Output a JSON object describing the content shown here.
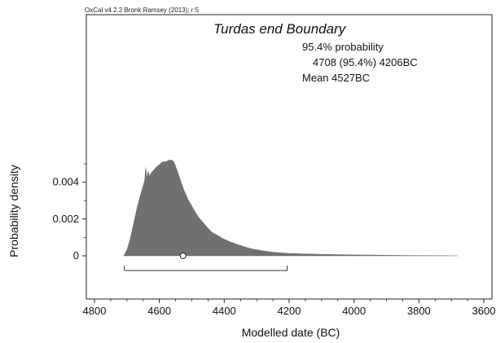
{
  "chart_data": {
    "type": "area",
    "credit": "OxCal v4.2.2 Bronk Ramsey (2013); r:5",
    "title": "Turdas end Boundary",
    "annotations": [
      "95.4% probability",
      "4708 (95.4%) 4206BC",
      "Mean 4527BC"
    ],
    "xlabel": "Modelled date (BC)",
    "ylabel": "Probability density",
    "xlim": [
      4800,
      3600
    ],
    "xticks": [
      4800,
      4600,
      4400,
      4200,
      4000,
      3800,
      3600
    ],
    "ylim": [
      0,
      0.006
    ],
    "yticks": [
      0,
      0.002,
      0.004
    ],
    "ytick_labels": [
      "0",
      "0.002",
      "0.004"
    ],
    "grid": false,
    "x": [
      4710,
      4700,
      4690,
      4680,
      4670,
      4660,
      4650,
      4645,
      4642,
      4638,
      4634,
      4630,
      4625,
      4620,
      4610,
      4600,
      4590,
      4580,
      4570,
      4562,
      4555,
      4545,
      4535,
      4525,
      4510,
      4500,
      4480,
      4460,
      4440,
      4420,
      4400,
      4380,
      4360,
      4340,
      4320,
      4300,
      4280,
      4260,
      4240,
      4220,
      4200,
      4150,
      4100,
      4050,
      4000,
      3950,
      3900,
      3850,
      3800,
      3750,
      3700,
      3680
    ],
    "y": [
      0,
      0.0003,
      0.0009,
      0.0017,
      0.0025,
      0.0032,
      0.0038,
      0.0041,
      0.0048,
      0.0042,
      0.0046,
      0.0043,
      0.0045,
      0.0046,
      0.0048,
      0.00495,
      0.0051,
      0.0051,
      0.0052,
      0.0052,
      0.0051,
      0.0046,
      0.0041,
      0.0036,
      0.003,
      0.0027,
      0.0021,
      0.0017,
      0.0013,
      0.0011,
      0.0009,
      0.00075,
      0.00062,
      0.0005,
      0.0004,
      0.00033,
      0.00027,
      0.00022,
      0.00018,
      0.00015,
      0.00013,
      0.0001,
      8e-05,
      6e-05,
      5e-05,
      4e-05,
      3e-05,
      2e-05,
      1.5e-05,
      1e-05,
      5e-06,
      0
    ],
    "mean": 4527,
    "range_95_4": [
      4708,
      4206
    ],
    "fill_color": "#707070"
  }
}
